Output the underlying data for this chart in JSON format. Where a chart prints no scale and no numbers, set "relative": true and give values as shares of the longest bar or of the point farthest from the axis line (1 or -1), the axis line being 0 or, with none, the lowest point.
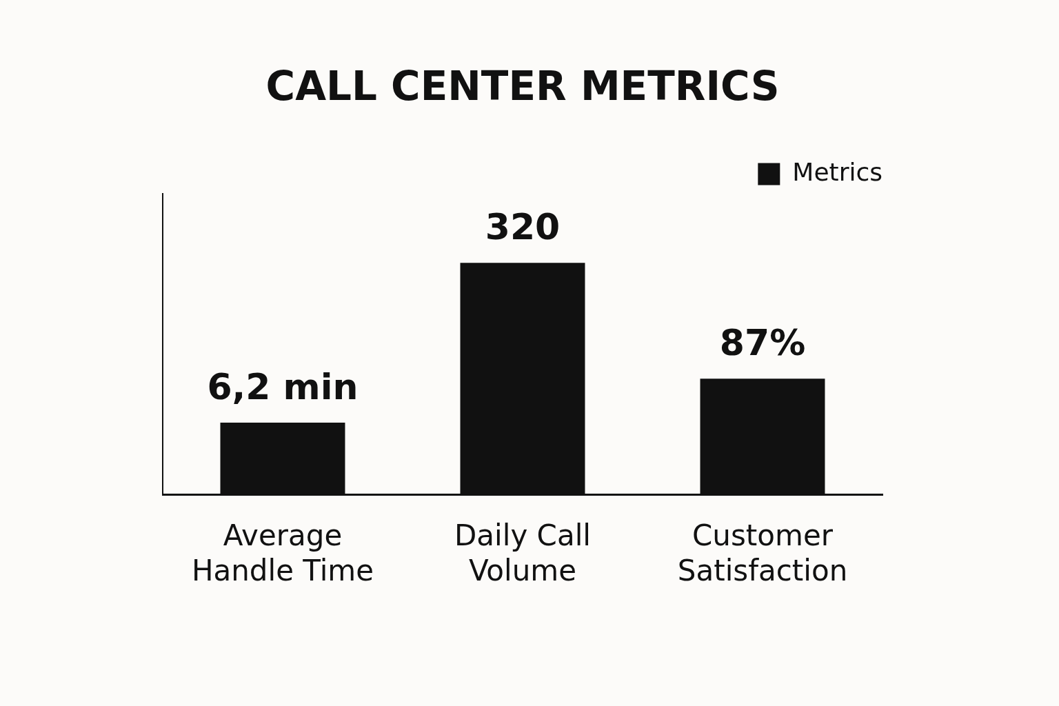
{
  "chart_data": {
    "type": "bar",
    "title": "CALL CENTER METRICS",
    "categories": [
      "Average Handle Time",
      "Daily Call Volume",
      "Customer Satisfaction"
    ],
    "series": [
      {
        "name": "Metrics",
        "color": "#111111",
        "values": [
          0.31,
          1,
          0.5
        ]
      }
    ],
    "relative": true,
    "value_labels": [
      "6,2 min",
      "320",
      "87%"
    ],
    "legend": "top right",
    "grid": false
  }
}
